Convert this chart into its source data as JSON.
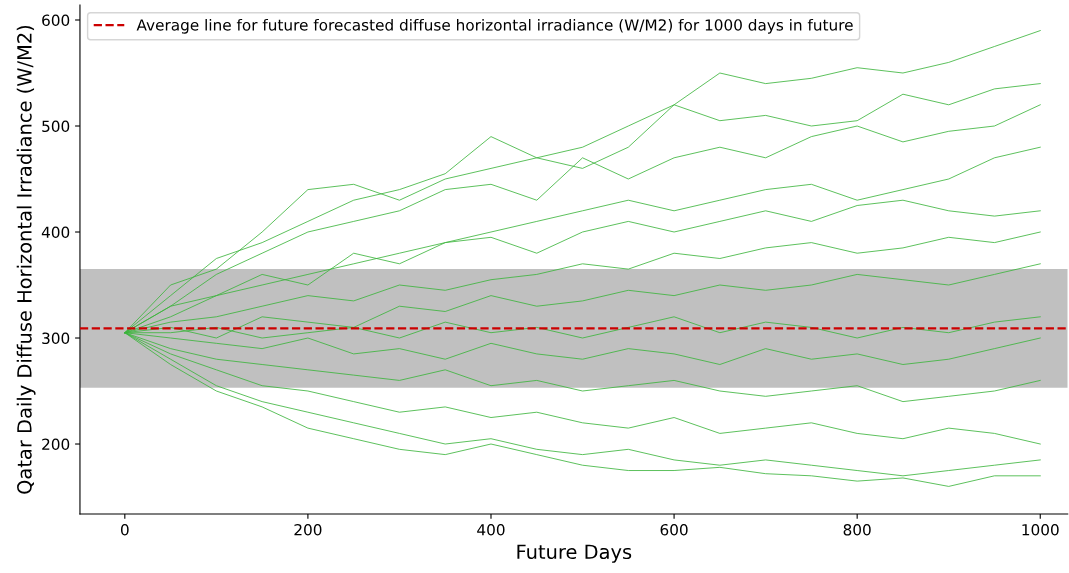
{
  "chart_data": {
    "type": "line",
    "xlabel": "Future Days",
    "ylabel": "Qatar Daily Diffuse Horizontal Irradiance (W/M2)",
    "x": [
      0,
      50,
      100,
      150,
      200,
      250,
      300,
      350,
      400,
      450,
      500,
      550,
      600,
      650,
      700,
      750,
      800,
      850,
      900,
      950,
      1000
    ],
    "series": [
      {
        "color": "#3cb43c",
        "values": [
          305,
          340,
          375,
          390,
          410,
          430,
          440,
          455,
          490,
          470,
          480,
          500,
          520,
          550,
          540,
          545,
          555,
          550,
          560,
          575,
          590
        ]
      },
      {
        "color": "#3cb43c",
        "values": [
          305,
          350,
          365,
          400,
          440,
          445,
          430,
          450,
          460,
          470,
          460,
          480,
          520,
          505,
          510,
          500,
          505,
          530,
          520,
          535,
          540
        ]
      },
      {
        "color": "#3cb43c",
        "values": [
          305,
          330,
          360,
          380,
          400,
          410,
          420,
          440,
          445,
          430,
          470,
          450,
          470,
          480,
          470,
          490,
          500,
          485,
          495,
          500,
          520
        ]
      },
      {
        "color": "#3cb43c",
        "values": [
          305,
          320,
          340,
          350,
          360,
          370,
          380,
          390,
          400,
          410,
          420,
          430,
          420,
          430,
          440,
          445,
          430,
          440,
          450,
          470,
          480
        ]
      },
      {
        "color": "#3cb43c",
        "values": [
          305,
          330,
          340,
          360,
          350,
          380,
          370,
          390,
          395,
          380,
          400,
          410,
          400,
          410,
          420,
          410,
          425,
          430,
          420,
          415,
          420
        ]
      },
      {
        "color": "#3cb43c",
        "values": [
          305,
          315,
          320,
          330,
          340,
          335,
          350,
          345,
          355,
          360,
          370,
          365,
          380,
          375,
          385,
          390,
          380,
          385,
          395,
          390,
          400
        ]
      },
      {
        "color": "#3cb43c",
        "values": [
          305,
          310,
          300,
          320,
          315,
          310,
          330,
          325,
          340,
          330,
          335,
          345,
          340,
          350,
          345,
          350,
          360,
          355,
          350,
          360,
          370
        ]
      },
      {
        "color": "#3cb43c",
        "values": [
          305,
          305,
          310,
          300,
          305,
          310,
          300,
          315,
          305,
          310,
          300,
          310,
          320,
          305,
          315,
          310,
          300,
          310,
          305,
          315,
          320
        ]
      },
      {
        "color": "#3cb43c",
        "values": [
          305,
          300,
          295,
          290,
          300,
          285,
          290,
          280,
          295,
          285,
          280,
          290,
          285,
          275,
          290,
          280,
          285,
          275,
          280,
          290,
          300
        ]
      },
      {
        "color": "#3cb43c",
        "values": [
          305,
          290,
          280,
          275,
          270,
          265,
          260,
          270,
          255,
          260,
          250,
          255,
          260,
          250,
          245,
          250,
          255,
          240,
          245,
          250,
          260
        ]
      },
      {
        "color": "#3cb43c",
        "values": [
          305,
          285,
          270,
          255,
          250,
          240,
          230,
          235,
          225,
          230,
          220,
          215,
          225,
          210,
          215,
          220,
          210,
          205,
          215,
          210,
          200
        ]
      },
      {
        "color": "#3cb43c",
        "values": [
          305,
          280,
          255,
          240,
          230,
          220,
          210,
          200,
          205,
          195,
          190,
          195,
          185,
          180,
          185,
          180,
          175,
          170,
          175,
          180,
          185
        ]
      },
      {
        "color": "#3cb43c",
        "values": [
          305,
          275,
          250,
          235,
          215,
          205,
          195,
          190,
          200,
          190,
          180,
          175,
          175,
          178,
          172,
          170,
          165,
          168,
          160,
          170,
          170
        ]
      }
    ],
    "ref_lines": [
      {
        "axis": "y",
        "value": 309,
        "label": "Average line for future forecasted diffuse horizontal irradiance (W/M2) for 1000 days in future",
        "color": "#cc0000",
        "line_style": "dashed"
      }
    ],
    "bands": [
      {
        "axis": "y",
        "from": 253,
        "to": 365,
        "color": "#c0c0c0"
      }
    ],
    "xlim": [
      -49,
      1030
    ],
    "ylim": [
      134,
      614
    ],
    "xticks": [
      0,
      200,
      400,
      600,
      800,
      1000
    ],
    "yticks": [
      200,
      300,
      400,
      500,
      600
    ],
    "grid": false,
    "legend": "top left",
    "marker": "none",
    "line_style": "solid"
  }
}
